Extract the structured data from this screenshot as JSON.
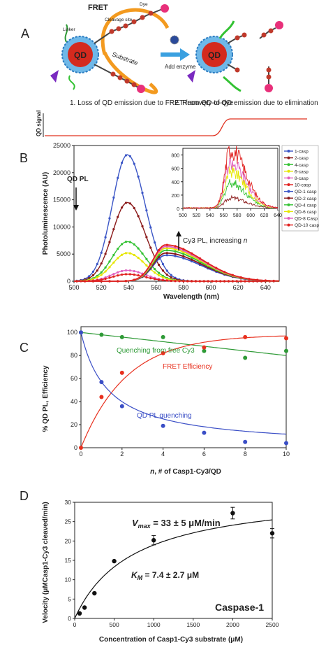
{
  "panel_labels": [
    "A",
    "B",
    "C",
    "D"
  ],
  "panel_a": {
    "fret_label": "FRET",
    "qd_label": "QD",
    "linker_label": "Linker",
    "cleavage_label": "Cleavage site",
    "dye_label": "Dye",
    "substrate_label": "Substrate",
    "add_enzyme_label": "Add enzyme",
    "step1_text": "1. Loss of QD emission due to FRET from QD-to-dye",
    "step2_text": "2. Recovery of QD emission due to elimination of FRET",
    "signal_label": "QD signal",
    "colors": {
      "qd_core": "#d42a1e",
      "shell": "#6fb8e8",
      "fret_arrow": "#f39a1f",
      "signal_line": "#e0301e",
      "add_arrow": "#3aa0e0",
      "dye": "#e8307a",
      "peptide": "#c0392b",
      "enzyme": "#2a4a9a"
    }
  },
  "chart_data": [
    {
      "panel": "B",
      "type": "line",
      "xlabel": "Wavelength (nm)",
      "ylabel": "Photoluminescence (AU)",
      "xlim": [
        500,
        650
      ],
      "ylim": [
        0,
        25000
      ],
      "xticks": [
        500,
        520,
        540,
        560,
        580,
        600,
        620,
        640
      ],
      "yticks": [
        0,
        5000,
        10000,
        15000,
        20000,
        25000
      ],
      "annotations": [
        "QD PL",
        "Cy3 PL, increasing ",
        "n"
      ],
      "series": [
        {
          "name": "1-casp",
          "color": "#3a55c6",
          "peak": 23300
        },
        {
          "name": "2-casp",
          "color": "#8b1a1a",
          "peak": 14500
        },
        {
          "name": "4-casp",
          "color": "#33c233",
          "peak": 7300
        },
        {
          "name": "6-casp",
          "color": "#e6e600",
          "peak": 5200
        },
        {
          "name": "8-casp",
          "color": "#e060c0",
          "peak": 2000
        },
        {
          "name": "10-casp",
          "color": "#e0201e",
          "peak": 1300
        },
        {
          "name": "QD-1 casp",
          "color": "#3a55c6",
          "peak": 4800
        },
        {
          "name": "QD-2 casp",
          "color": "#8b1a1a",
          "peak": 5200
        },
        {
          "name": "QD-4 casp",
          "color": "#33c233",
          "peak": 5700
        },
        {
          "name": "QD-6 casp",
          "color": "#e6e600",
          "peak": 6100
        },
        {
          "name": "QD-8 Casp",
          "color": "#e060c0",
          "peak": 6400
        },
        {
          "name": "QD-10 casp",
          "color": "#e0201e",
          "peak": 6700
        }
      ],
      "inset": {
        "xlim": [
          500,
          640
        ],
        "ylim": [
          0,
          900
        ],
        "xticks": [
          500,
          520,
          540,
          560,
          580,
          600,
          620,
          640
        ],
        "yticks": [
          0,
          200,
          400,
          600,
          800
        ],
        "series": [
          {
            "name": "2-casp",
            "color": "#8b1a1a",
            "peak": 150
          },
          {
            "name": "4-casp",
            "color": "#33c233",
            "peak": 380
          },
          {
            "name": "6-casp",
            "color": "#e6e600",
            "peak": 550
          },
          {
            "name": "8-casp",
            "color": "#e060c0",
            "peak": 680
          },
          {
            "name": "10-casp",
            "color": "#e0201e",
            "peak": 880
          }
        ]
      }
    },
    {
      "panel": "C",
      "type": "scatter",
      "xlabel_prefix": "n",
      "xlabel": ", # of Casp1-Cy3/QD",
      "ylabel": "% QD PL, Efficiency",
      "xlim": [
        0,
        10
      ],
      "ylim": [
        0,
        105
      ],
      "xticks": [
        0,
        2,
        4,
        6,
        8,
        10
      ],
      "yticks": [
        0,
        20,
        40,
        60,
        80,
        100
      ],
      "series": [
        {
          "name": "Quenching from free Cy3",
          "color": "#2e9a36",
          "x": [
            0,
            1,
            2,
            4,
            6,
            8,
            10
          ],
          "y": [
            100,
            98,
            96,
            96,
            84,
            78,
            84
          ]
        },
        {
          "name": "FRET Efficiency",
          "color": "#e8301e",
          "x": [
            0,
            1,
            2,
            4,
            6,
            8,
            10
          ],
          "y": [
            0,
            44,
            65,
            82,
            87,
            96,
            95
          ]
        },
        {
          "name": "QD PL quenching",
          "color": "#3a4ec6",
          "x": [
            0,
            1,
            2,
            4,
            6,
            8,
            10
          ],
          "y": [
            100,
            57,
            36,
            19,
            13,
            5,
            4
          ]
        }
      ]
    },
    {
      "panel": "D",
      "type": "scatter",
      "xlabel": "Concentration of Casp1-Cy3 substrate (μM)",
      "ylabel": "Velocity (μMCasp1-Cy3 cleaved/min)",
      "xlim": [
        0,
        2500
      ],
      "ylim": [
        0,
        30
      ],
      "xticks": [
        0,
        500,
        1000,
        1500,
        2000,
        2500
      ],
      "yticks": [
        0,
        5,
        10,
        15,
        20,
        25,
        30
      ],
      "x": [
        62,
        125,
        250,
        500,
        1000,
        2000,
        2500
      ],
      "y": [
        1.3,
        2.8,
        6.5,
        14.8,
        20.2,
        27.2,
        22.0
      ],
      "error": [
        0,
        0,
        0,
        0,
        1.2,
        1.5,
        1.2
      ],
      "vmax_label": "V",
      "vmax_sub": "max",
      "vmax_value": " = 33 ± 5 μM/min",
      "km_label": "K",
      "km_sub": "M",
      "km_value": " = 7.4 ± 2.7  μM",
      "enzyme_label": "Caspase-1"
    }
  ]
}
